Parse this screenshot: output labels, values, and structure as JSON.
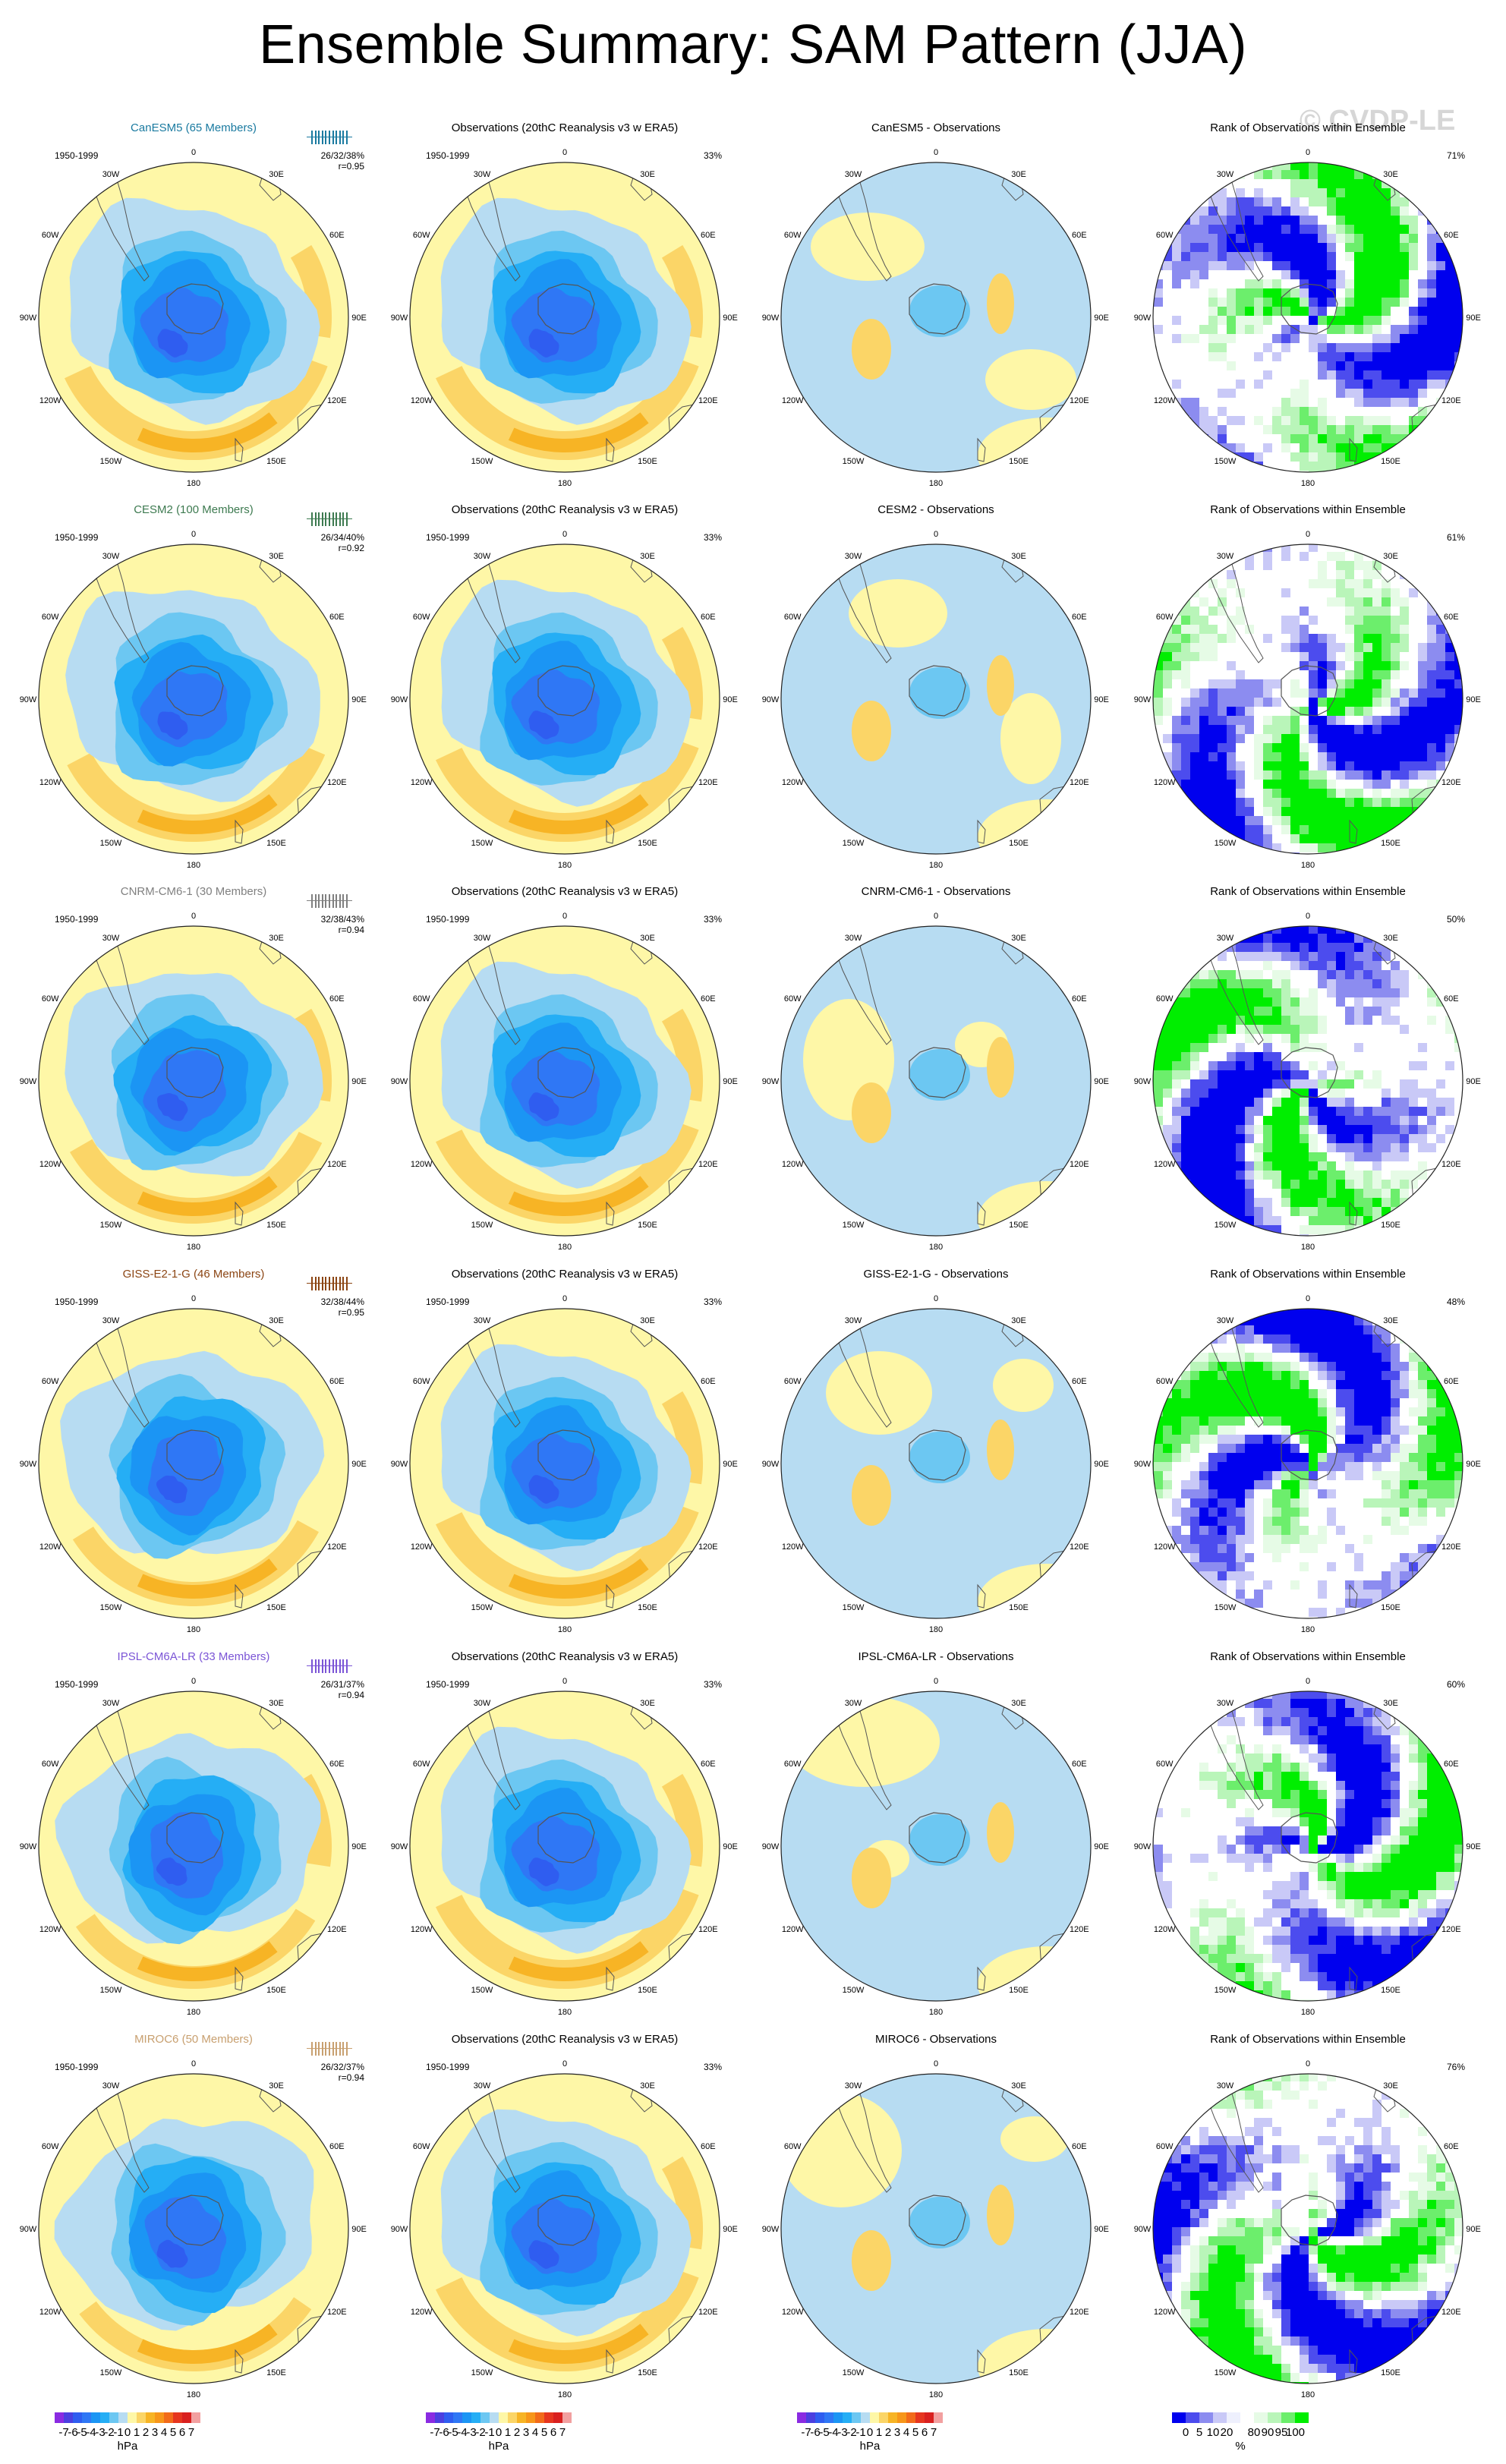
{
  "page": {
    "title": "Ensemble Summary: SAM Pattern (JJA)",
    "watermark": "© CVDP-LE"
  },
  "map_labels": {
    "lon": [
      "0",
      "30E",
      "60E",
      "90E",
      "120E",
      "150E",
      "180",
      "150W",
      "120W",
      "90W",
      "60W",
      "30W"
    ]
  },
  "colors": {
    "land_outline": "#555555",
    "rank_scale": [
      "#0000ee",
      "#4c4cee",
      "#8c8cf0",
      "#c9c9f7",
      "#eef0fd",
      "#ffffff",
      "#e6fbe6",
      "#b9f5b9",
      "#6cee6c",
      "#00ee00"
    ],
    "diverging_scale": [
      "#8a2be2",
      "#4b3fe0",
      "#2f5df0",
      "#2f77f5",
      "#1b95f4",
      "#25aef5",
      "#6cc7f2",
      "#b7dcf2",
      "#fef7a7",
      "#fbd567",
      "#f7b425",
      "#f7961a",
      "#f26b1a",
      "#e6361f",
      "#d9201f",
      "#f2a0a0"
    ]
  },
  "rows": [
    {
      "model": "CanESM5 (65 Members)",
      "model_color": "#1a7aa0",
      "stats_top": "26/32/38%",
      "stats_r": "r=0.95",
      "period": "1950-1999",
      "obs_title": "Observations (20thC Reanalysis v3 w ERA5)",
      "obs_pct": "33%",
      "diff_title": "CanESM5 - Observations",
      "rank_title": "Rank of Observations within Ensemble",
      "rank_pct": "71%"
    },
    {
      "model": "CESM2 (100 Members)",
      "model_color": "#3d7a50",
      "stats_top": "26/34/40%",
      "stats_r": "r=0.92",
      "period": "1950-1999",
      "obs_title": "Observations (20thC Reanalysis v3 w ERA5)",
      "obs_pct": "33%",
      "diff_title": "CESM2 - Observations",
      "rank_title": "Rank of Observations within Ensemble",
      "rank_pct": "61%"
    },
    {
      "model": "CNRM-CM6-1 (30 Members)",
      "model_color": "#808080",
      "stats_top": "32/38/43%",
      "stats_r": "r=0.94",
      "period": "1950-1999",
      "obs_title": "Observations (20thC Reanalysis v3 w ERA5)",
      "obs_pct": "33%",
      "diff_title": "CNRM-CM6-1 - Observations",
      "rank_title": "Rank of Observations within Ensemble",
      "rank_pct": "50%"
    },
    {
      "model": "GISS-E2-1-G (46 Members)",
      "model_color": "#8b4513",
      "stats_top": "32/38/44%",
      "stats_r": "r=0.95",
      "period": "1950-1999",
      "obs_title": "Observations (20thC Reanalysis v3 w ERA5)",
      "obs_pct": "33%",
      "diff_title": "GISS-E2-1-G - Observations",
      "rank_title": "Rank of Observations within Ensemble",
      "rank_pct": "48%"
    },
    {
      "model": "IPSL-CM6A-LR (33 Members)",
      "model_color": "#7b55d6",
      "stats_top": "26/31/37%",
      "stats_r": "r=0.94",
      "period": "1950-1999",
      "obs_title": "Observations (20thC Reanalysis v3 w ERA5)",
      "obs_pct": "33%",
      "diff_title": "IPSL-CM6A-LR - Observations",
      "rank_title": "Rank of Observations within Ensemble",
      "rank_pct": "60%"
    },
    {
      "model": "MIROC6 (50 Members)",
      "model_color": "#c8a070",
      "stats_top": "26/32/37%",
      "stats_r": "r=0.94",
      "period": "1950-1999",
      "obs_title": "Observations (20thC Reanalysis v3 w ERA5)",
      "obs_pct": "33%",
      "diff_title": "MIROC6 - Observations",
      "rank_title": "Rank of Observations within Ensemble",
      "rank_pct": "76%"
    }
  ],
  "colorbars": {
    "diverging": {
      "labels": [
        "-7",
        "-6",
        "-5",
        "-4",
        "-3",
        "-2",
        "-1",
        "0",
        "1",
        "2",
        "3",
        "4",
        "5",
        "6",
        "7"
      ],
      "unit": "hPa"
    },
    "rank": {
      "labels": [
        "0",
        "5",
        "10",
        "20",
        "80",
        "90",
        "95",
        "100"
      ],
      "unit": "%"
    }
  }
}
